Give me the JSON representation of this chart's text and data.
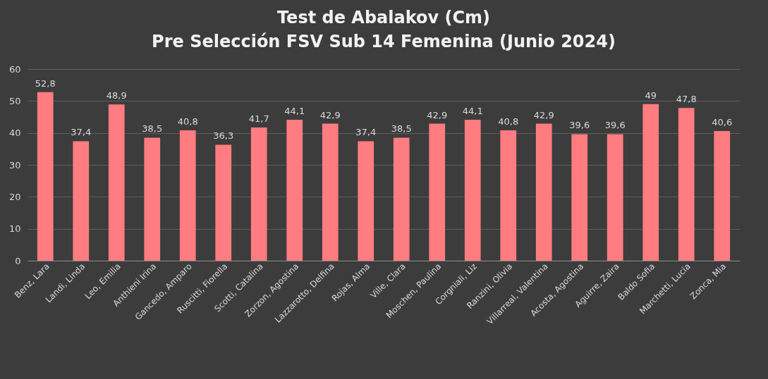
{
  "chart_data": {
    "type": "bar",
    "title": "Test de Abalakov (Cm)",
    "subtitle": "Pre Selección FSV Sub 14 Femenina (Junio 2024)",
    "categories": [
      "Benz, Lara",
      "Landi, Linda",
      "Leo, Emilia",
      "Anthieni Irina",
      "Gancedo, Amparo",
      "Ruscitti, Fiorella",
      "Scotti, Catalina",
      "Zorzon, Agostina",
      "Lazzarotto, Delfina",
      "Rojas, Alma",
      "Ville, Clara",
      "Moschen, Paulina",
      "Corgniali, Liz",
      "Ranzini, Olivia",
      "Villarreal, Valentina",
      "Acosta, Agostina",
      "Aguirre, Zaira",
      "Baldo Sofia",
      "Marchetti, Lucia",
      "Zonca, Mia"
    ],
    "values": [
      52.8,
      37.4,
      48.9,
      38.5,
      40.8,
      36.3,
      41.7,
      44.1,
      42.9,
      37.4,
      38.5,
      42.9,
      44.1,
      40.8,
      42.9,
      39.6,
      39.6,
      49,
      47.8,
      40.6
    ],
    "value_labels": [
      "52,8",
      "37,4",
      "48,9",
      "38,5",
      "40,8",
      "36,3",
      "41,7",
      "44,1",
      "42,9",
      "37,4",
      "38,5",
      "42,9",
      "44,1",
      "40,8",
      "42,9",
      "39,6",
      "39,6",
      "49",
      "47,8",
      "40,6"
    ],
    "color": "#ff7c80",
    "ylim": [
      0,
      60
    ],
    "yticks": [
      0,
      10,
      20,
      30,
      40,
      50,
      60
    ],
    "grid": "y"
  }
}
